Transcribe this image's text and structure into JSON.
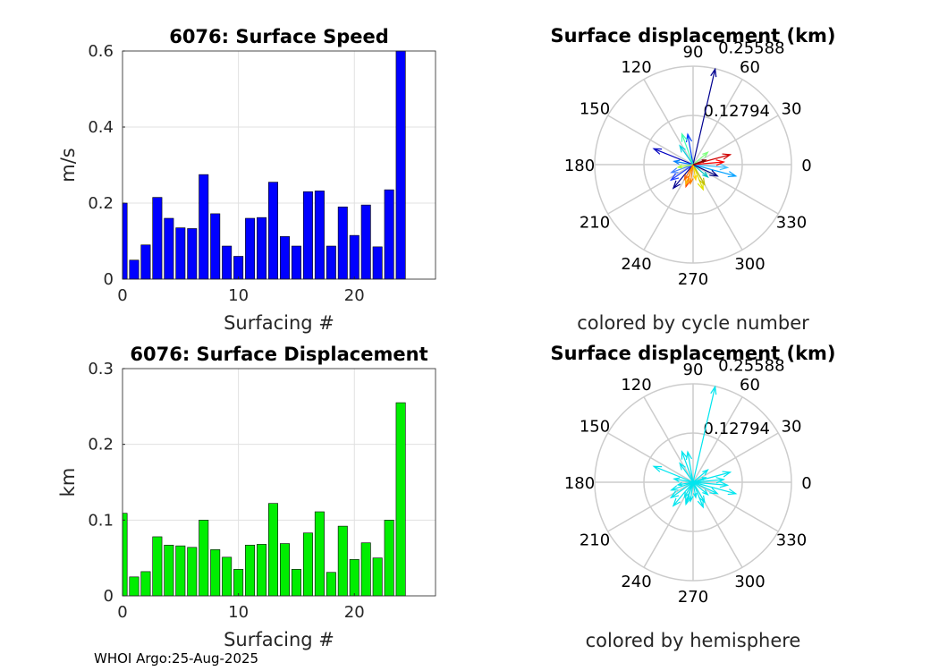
{
  "footer": "WHOI Argo:25-Aug-2025",
  "chart_data": [
    {
      "type": "bar",
      "title": "6076: Surface Speed",
      "xlabel": "Surfacing #",
      "ylabel": "m/s",
      "xlim": [
        0,
        27
      ],
      "ylim": [
        0,
        0.6
      ],
      "xticks": [
        0,
        10,
        20
      ],
      "yticks": [
        0,
        0.2,
        0.4,
        0.6
      ],
      "xtick_labels": [
        "0",
        "10",
        "20"
      ],
      "ytick_labels": [
        "0",
        "0.2",
        "0.4",
        "0.6"
      ],
      "grid": true,
      "bar_color": "#0000ff",
      "categories": [
        0,
        1,
        2,
        3,
        4,
        5,
        6,
        7,
        8,
        9,
        10,
        11,
        12,
        13,
        14,
        15,
        16,
        17,
        18,
        19,
        20,
        21,
        22,
        23,
        24
      ],
      "values": [
        0.2,
        0.05,
        0.09,
        0.215,
        0.16,
        0.135,
        0.133,
        0.275,
        0.172,
        0.087,
        0.06,
        0.16,
        0.162,
        0.255,
        0.112,
        0.087,
        0.23,
        0.232,
        0.087,
        0.19,
        0.115,
        0.195,
        0.085,
        0.235,
        0.61
      ]
    },
    {
      "type": "bar",
      "title": "6076: Surface Displacement",
      "xlabel": "Surfacing #",
      "ylabel": "km",
      "xlim": [
        0,
        27
      ],
      "ylim": [
        0,
        0.3
      ],
      "xticks": [
        0,
        10,
        20
      ],
      "yticks": [
        0,
        0.1,
        0.2,
        0.3
      ],
      "xtick_labels": [
        "0",
        "10",
        "20"
      ],
      "ytick_labels": [
        "0",
        "0.1",
        "0.2",
        "0.3"
      ],
      "grid": true,
      "bar_color": "#00ee00",
      "categories": [
        0,
        1,
        2,
        3,
        4,
        5,
        6,
        7,
        8,
        9,
        10,
        11,
        12,
        13,
        14,
        15,
        16,
        17,
        18,
        19,
        20,
        21,
        22,
        23,
        24
      ],
      "values": [
        0.109,
        0.025,
        0.032,
        0.078,
        0.067,
        0.066,
        0.064,
        0.1,
        0.061,
        0.051,
        0.035,
        0.067,
        0.068,
        0.122,
        0.069,
        0.035,
        0.083,
        0.111,
        0.031,
        0.092,
        0.048,
        0.07,
        0.05,
        0.1,
        0.255
      ]
    },
    {
      "type": "polar",
      "title": "Surface displacement (km)",
      "caption": "colored by cycle number",
      "rmax": 0.25588,
      "ring_labels": [
        "0.12794",
        "0.25588"
      ],
      "angle_labels": [
        "0",
        "30",
        "60",
        "90",
        "120",
        "150",
        "180",
        "210",
        "240",
        "270",
        "300",
        "330"
      ],
      "arrows": [
        {
          "theta": 77,
          "r": 0.255,
          "color": "#000090"
        },
        {
          "theta": 158,
          "r": 0.11,
          "color": "#0000c0"
        },
        {
          "theta": 100,
          "r": 0.08,
          "color": "#0040ff"
        },
        {
          "theta": 15,
          "r": 0.1,
          "color": "#d00000"
        },
        {
          "theta": 345,
          "r": 0.115,
          "color": "#00a0ff"
        },
        {
          "theta": 355,
          "r": 0.09,
          "color": "#40c0ff"
        },
        {
          "theta": 230,
          "r": 0.08,
          "color": "#000090"
        },
        {
          "theta": 215,
          "r": 0.07,
          "color": "#2040ff"
        },
        {
          "theta": 200,
          "r": 0.06,
          "color": "#4080ff"
        },
        {
          "theta": 252,
          "r": 0.06,
          "color": "#ff4000"
        },
        {
          "theta": 262,
          "r": 0.05,
          "color": "#ff8000"
        },
        {
          "theta": 250,
          "r": 0.055,
          "color": "#ffb000"
        },
        {
          "theta": 292,
          "r": 0.07,
          "color": "#e0e000"
        },
        {
          "theta": 300,
          "r": 0.06,
          "color": "#c0c000"
        },
        {
          "theta": 320,
          "r": 0.05,
          "color": "#00c0c0"
        },
        {
          "theta": 40,
          "r": 0.05,
          "color": "#80ff80"
        },
        {
          "theta": 110,
          "r": 0.085,
          "color": "#40ffb0"
        },
        {
          "theta": 125,
          "r": 0.06,
          "color": "#00d0e0"
        },
        {
          "theta": 170,
          "r": 0.05,
          "color": "#0080ff"
        },
        {
          "theta": 5,
          "r": 0.08,
          "color": "#ff0000"
        },
        {
          "theta": 190,
          "r": 0.04,
          "color": "#b0ff40"
        },
        {
          "theta": 280,
          "r": 0.04,
          "color": "#ffd000"
        },
        {
          "theta": 335,
          "r": 0.07,
          "color": "#000080"
        },
        {
          "theta": 240,
          "r": 0.045,
          "color": "#ff6000"
        },
        {
          "theta": 20,
          "r": 0.035,
          "color": "#800000"
        }
      ]
    },
    {
      "type": "polar",
      "title": "Surface displacement (km)",
      "caption": "colored by hemisphere",
      "rmax": 0.25588,
      "ring_labels": [
        "0.12794",
        "0.25588"
      ],
      "angle_labels": [
        "0",
        "30",
        "60",
        "90",
        "120",
        "150",
        "180",
        "210",
        "240",
        "270",
        "300",
        "330"
      ],
      "arrows": [
        {
          "theta": 77,
          "r": 0.255,
          "color": "#00e5ee"
        },
        {
          "theta": 158,
          "r": 0.11,
          "color": "#00e5ee"
        },
        {
          "theta": 100,
          "r": 0.08,
          "color": "#00e5ee"
        },
        {
          "theta": 15,
          "r": 0.1,
          "color": "#00e5ee"
        },
        {
          "theta": 345,
          "r": 0.115,
          "color": "#00e5ee"
        },
        {
          "theta": 355,
          "r": 0.09,
          "color": "#00e5ee"
        },
        {
          "theta": 230,
          "r": 0.08,
          "color": "#00e5ee"
        },
        {
          "theta": 215,
          "r": 0.07,
          "color": "#00e5ee"
        },
        {
          "theta": 200,
          "r": 0.06,
          "color": "#00e5ee"
        },
        {
          "theta": 252,
          "r": 0.06,
          "color": "#00e5ee"
        },
        {
          "theta": 262,
          "r": 0.05,
          "color": "#00e5ee"
        },
        {
          "theta": 250,
          "r": 0.055,
          "color": "#00e5ee"
        },
        {
          "theta": 292,
          "r": 0.07,
          "color": "#00e5ee"
        },
        {
          "theta": 300,
          "r": 0.06,
          "color": "#00e5ee"
        },
        {
          "theta": 320,
          "r": 0.05,
          "color": "#00e5ee"
        },
        {
          "theta": 40,
          "r": 0.05,
          "color": "#00e5ee"
        },
        {
          "theta": 110,
          "r": 0.085,
          "color": "#00e5ee"
        },
        {
          "theta": 125,
          "r": 0.06,
          "color": "#00e5ee"
        },
        {
          "theta": 170,
          "r": 0.05,
          "color": "#00e5ee"
        },
        {
          "theta": 5,
          "r": 0.08,
          "color": "#00e5ee"
        },
        {
          "theta": 190,
          "r": 0.04,
          "color": "#00e5ee"
        },
        {
          "theta": 280,
          "r": 0.04,
          "color": "#00e5ee"
        },
        {
          "theta": 335,
          "r": 0.07,
          "color": "#00e5ee"
        },
        {
          "theta": 240,
          "r": 0.045,
          "color": "#00e5ee"
        },
        {
          "theta": 20,
          "r": 0.035,
          "color": "#00e5ee"
        }
      ]
    }
  ]
}
